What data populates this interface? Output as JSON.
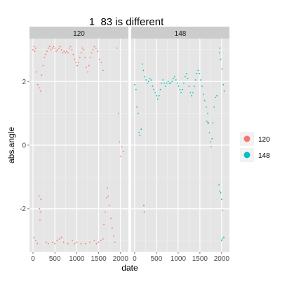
{
  "chart_data": {
    "type": "scatter",
    "title": "1_83 is different",
    "xlabel": "date",
    "ylabel": "abs.angle",
    "facets": [
      "120",
      "148"
    ],
    "xlim": [
      -80,
      2180
    ],
    "ylim": [
      -3.35,
      3.35
    ],
    "x_ticks": [
      0,
      500,
      1000,
      1500,
      2000
    ],
    "y_ticks": [
      2,
      0,
      -2
    ],
    "grid": true,
    "legend_position": "right",
    "series": [
      {
        "name": "120",
        "color": "#F8766D",
        "facet": "120",
        "points": [
          [
            0,
            3.0
          ],
          [
            20,
            3.1
          ],
          [
            40,
            2.95
          ],
          [
            60,
            3.05
          ],
          [
            80,
            2.3
          ],
          [
            110,
            1.9
          ],
          [
            140,
            1.8
          ],
          [
            170,
            1.7
          ],
          [
            200,
            2.2
          ],
          [
            230,
            2.5
          ],
          [
            260,
            2.75
          ],
          [
            290,
            2.85
          ],
          [
            320,
            2.95
          ],
          [
            350,
            3.05
          ],
          [
            380,
            3.1
          ],
          [
            410,
            3.0
          ],
          [
            440,
            3.05
          ],
          [
            470,
            3.1
          ],
          [
            500,
            3.05
          ],
          [
            530,
            2.95
          ],
          [
            560,
            3.0
          ],
          [
            590,
            3.05
          ],
          [
            620,
            3.1
          ],
          [
            650,
            3.0
          ],
          [
            680,
            2.9
          ],
          [
            710,
            2.95
          ],
          [
            740,
            2.9
          ],
          [
            770,
            2.95
          ],
          [
            800,
            2.9
          ],
          [
            830,
            3.05
          ],
          [
            860,
            3.1
          ],
          [
            890,
            3.0
          ],
          [
            920,
            2.85
          ],
          [
            950,
            2.7
          ],
          [
            980,
            2.6
          ],
          [
            1010,
            2.5
          ],
          [
            1040,
            2.6
          ],
          [
            1070,
            2.75
          ],
          [
            1100,
            2.9
          ],
          [
            1130,
            3.05
          ],
          [
            1160,
            3.0
          ],
          [
            1190,
            2.75
          ],
          [
            1220,
            2.45
          ],
          [
            1250,
            2.3
          ],
          [
            1280,
            2.5
          ],
          [
            1310,
            2.75
          ],
          [
            1340,
            2.9
          ],
          [
            1370,
            3.0
          ],
          [
            1400,
            3.1
          ],
          [
            1440,
            3.05
          ],
          [
            1480,
            2.95
          ],
          [
            1520,
            2.7
          ],
          [
            1560,
            2.6
          ],
          [
            1600,
            2.35
          ],
          [
            1620,
            -2.5
          ],
          [
            1650,
            -2.1
          ],
          [
            1680,
            -1.65
          ],
          [
            1700,
            -1.35
          ],
          [
            1720,
            -1.6
          ],
          [
            1750,
            -1.9
          ],
          [
            1780,
            -2.3
          ],
          [
            1810,
            -2.6
          ],
          [
            1840,
            -2.85
          ],
          [
            1870,
            -3.05
          ],
          [
            1920,
            3.05
          ],
          [
            1950,
            1.0
          ],
          [
            1980,
            0.1
          ],
          [
            2000,
            -0.35
          ],
          [
            2030,
            -0.05
          ],
          [
            2060,
            -0.2
          ],
          [
            140,
            -1.6
          ],
          [
            150,
            -2.0
          ],
          [
            160,
            -2.35
          ],
          [
            170,
            -2.1
          ],
          [
            180,
            -1.7
          ],
          [
            20,
            -2.9
          ],
          [
            60,
            -3.0
          ],
          [
            100,
            -3.1
          ],
          [
            300,
            -3.05
          ],
          [
            350,
            -3.1
          ],
          [
            450,
            -3.05
          ],
          [
            500,
            -3.1
          ],
          [
            550,
            -3.0
          ],
          [
            600,
            -2.95
          ],
          [
            650,
            -2.9
          ],
          [
            700,
            -3.05
          ],
          [
            800,
            -3.1
          ],
          [
            900,
            -3.0
          ],
          [
            950,
            -3.1
          ],
          [
            1000,
            -3.05
          ],
          [
            1100,
            -3.1
          ],
          [
            1200,
            -3.1
          ],
          [
            1300,
            -3.05
          ],
          [
            1400,
            -3.0
          ],
          [
            1450,
            -3.1
          ],
          [
            1500,
            -3.05
          ],
          [
            1550,
            -3.0
          ],
          [
            1600,
            -2.95
          ]
        ]
      },
      {
        "name": "148",
        "color": "#00BFC4",
        "facet": "148",
        "points": [
          [
            0,
            1.9
          ],
          [
            30,
            1.75
          ],
          [
            50,
            1.2
          ],
          [
            80,
            1.0
          ],
          [
            100,
            0.4
          ],
          [
            120,
            0.3
          ],
          [
            150,
            0.5
          ],
          [
            180,
            2.55
          ],
          [
            200,
            2.35
          ],
          [
            230,
            2.15
          ],
          [
            260,
            2.05
          ],
          [
            290,
            1.95
          ],
          [
            320,
            2.0
          ],
          [
            350,
            2.1
          ],
          [
            380,
            2.05
          ],
          [
            410,
            1.85
          ],
          [
            440,
            1.75
          ],
          [
            470,
            1.65
          ],
          [
            500,
            1.55
          ],
          [
            530,
            1.45
          ],
          [
            560,
            1.55
          ],
          [
            590,
            1.75
          ],
          [
            620,
            1.95
          ],
          [
            650,
            2.05
          ],
          [
            680,
            1.95
          ],
          [
            710,
            1.85
          ],
          [
            740,
            1.95
          ],
          [
            770,
            2.0
          ],
          [
            800,
            1.95
          ],
          [
            830,
            1.95
          ],
          [
            860,
            2.0
          ],
          [
            890,
            2.1
          ],
          [
            920,
            2.15
          ],
          [
            950,
            2.05
          ],
          [
            980,
            1.95
          ],
          [
            1010,
            1.85
          ],
          [
            1040,
            1.75
          ],
          [
            1070,
            1.65
          ],
          [
            1100,
            1.75
          ],
          [
            1130,
            1.95
          ],
          [
            1160,
            2.15
          ],
          [
            1190,
            2.25
          ],
          [
            1220,
            2.1
          ],
          [
            1250,
            1.85
          ],
          [
            1280,
            1.65
          ],
          [
            1310,
            1.55
          ],
          [
            1340,
            1.65
          ],
          [
            1370,
            1.85
          ],
          [
            1400,
            2.05
          ],
          [
            1430,
            2.25
          ],
          [
            1460,
            2.35
          ],
          [
            1490,
            2.25
          ],
          [
            1520,
            2.05
          ],
          [
            1550,
            1.85
          ],
          [
            1580,
            1.6
          ],
          [
            1610,
            1.4
          ],
          [
            1650,
            1.2
          ],
          [
            1680,
            1.0
          ],
          [
            1700,
            0.7
          ],
          [
            1720,
            0.4
          ],
          [
            1740,
            0.1
          ],
          [
            1760,
            -0.05
          ],
          [
            1780,
            0.2
          ],
          [
            1800,
            0.7
          ],
          [
            1830,
            1.2
          ],
          [
            1860,
            1.5
          ],
          [
            1890,
            1.55
          ],
          [
            1660,
            0.75
          ],
          [
            1680,
            0.7
          ],
          [
            1700,
            0.7
          ],
          [
            1940,
            -1.25
          ],
          [
            1960,
            -1.45
          ],
          [
            1980,
            -1.5
          ],
          [
            2000,
            -1.7
          ],
          [
            2020,
            -2.05
          ],
          [
            1980,
            2.7
          ],
          [
            2010,
            2.4
          ],
          [
            2040,
            1.9
          ],
          [
            2060,
            1.7
          ],
          [
            1950,
            2.9
          ],
          [
            1960,
            3.05
          ],
          [
            2000,
            -3.0
          ],
          [
            2010,
            -2.95
          ],
          [
            2050,
            -2.9
          ],
          [
            210,
            -1.9
          ],
          [
            220,
            -2.1
          ]
        ]
      }
    ]
  }
}
